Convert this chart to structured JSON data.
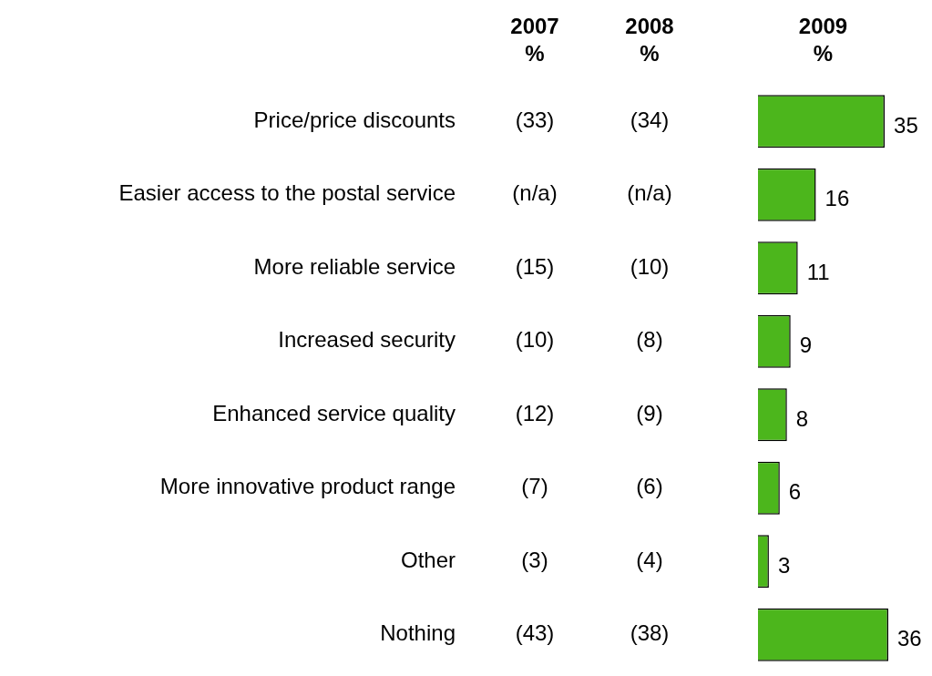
{
  "chart_data": {
    "type": "bar",
    "orientation": "horizontal",
    "data_labels": true,
    "legend": false,
    "categories": [
      "Price/price discounts",
      "Easier access to the postal service",
      "More reliable service",
      "Increased security",
      "Enhanced service quality",
      "More innovative product range",
      "Other",
      "Nothing"
    ],
    "series": [
      {
        "name": "2007\n%",
        "type": "other",
        "values": [
          null,
          null,
          null,
          null,
          null,
          null,
          null,
          null
        ],
        "value_labels": [
          "(33)",
          "(n/a)",
          "(15)",
          "(10)",
          "(12)",
          "(7)",
          "(3)",
          "(43)"
        ]
      },
      {
        "name": "2008\n%",
        "type": "other",
        "values": [
          null,
          null,
          null,
          null,
          null,
          null,
          null,
          null
        ],
        "value_labels": [
          "(34)",
          "(n/a)",
          "(10)",
          "(8)",
          "(9)",
          "(6)",
          "(4)",
          "(38)"
        ]
      },
      {
        "name": "2009\n%",
        "type": "bar",
        "color": "#4cb61c",
        "values": [
          35,
          16,
          11,
          9,
          8,
          6,
          3,
          36
        ]
      }
    ]
  }
}
